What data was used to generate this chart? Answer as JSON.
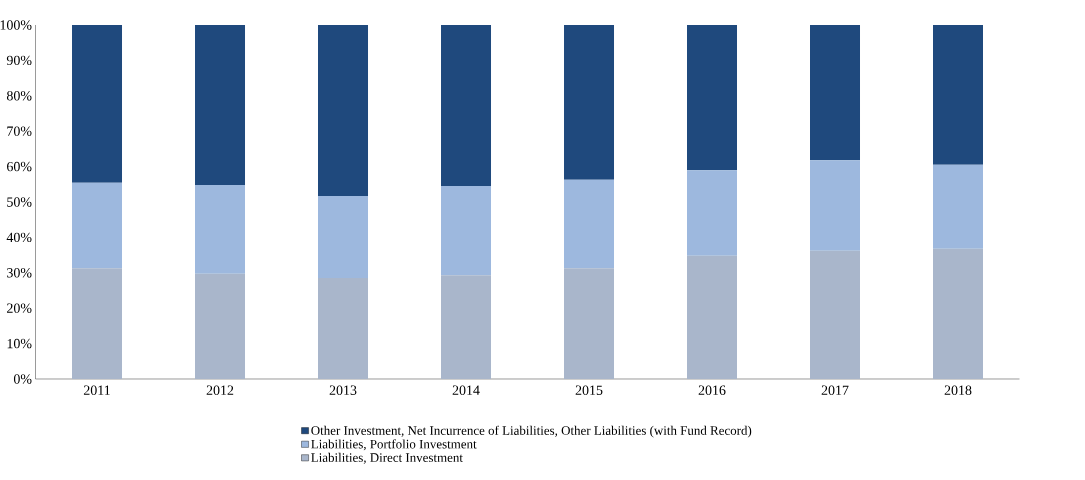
{
  "chart_data": {
    "type": "bar",
    "stacked": true,
    "categories": [
      "2011",
      "2012",
      "2013",
      "2014",
      "2015",
      "2016",
      "2017",
      "2018"
    ],
    "series": [
      {
        "name": "Liabilities, Direct Investment",
        "color": "#a9b6cb",
        "values": [
          31.3,
          29.7,
          28.5,
          29.3,
          31.3,
          34.8,
          36.2,
          36.8
        ]
      },
      {
        "name": "Liabilities, Portfolio Investment",
        "color": "#9db8de",
        "values": [
          24.1,
          25.1,
          23.2,
          25.2,
          25.0,
          24.2,
          25.6,
          23.7
        ]
      },
      {
        "name": "Other Investment, Net Incurrence of Liabilities, Other Liabilities (with Fund Record)",
        "color": "#1f497d",
        "values": [
          44.6,
          45.2,
          48.3,
          45.5,
          43.7,
          41.0,
          38.2,
          39.5
        ]
      }
    ],
    "ylim": [
      0,
      100
    ],
    "yticks": [
      {
        "value": 0,
        "label": "0%"
      },
      {
        "value": 10,
        "label": "10%"
      },
      {
        "value": 20,
        "label": "20%"
      },
      {
        "value": 30,
        "label": "30%"
      },
      {
        "value": 40,
        "label": "40%"
      },
      {
        "value": 50,
        "label": "50%"
      },
      {
        "value": 60,
        "label": "60%"
      },
      {
        "value": 70,
        "label": "70%"
      },
      {
        "value": 80,
        "label": "80%"
      },
      {
        "value": 90,
        "label": "90%"
      },
      {
        "value": 100,
        "label": "100%"
      }
    ],
    "legend": "bottom"
  }
}
